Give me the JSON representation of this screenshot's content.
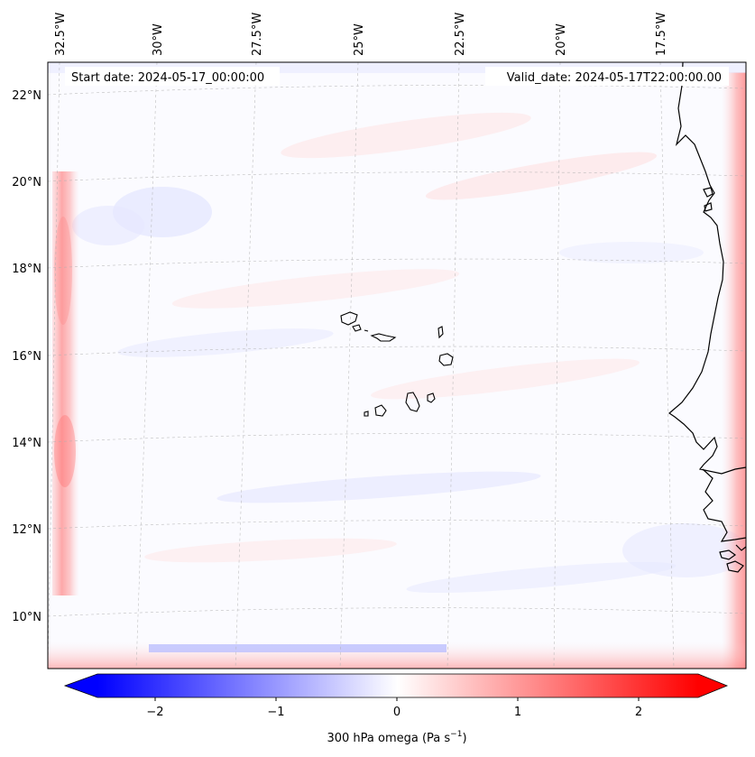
{
  "header": {
    "start_date": "Start date: 2024-05-17_00:00:00",
    "valid_date": "Valid_date: 2024-05-17T22:00:00.00"
  },
  "axes": {
    "lon_ticks": [
      "32.5°W",
      "30°W",
      "27.5°W",
      "25°W",
      "22.5°W",
      "20°W",
      "17.5°W"
    ],
    "lat_ticks": [
      "22°N",
      "20°N",
      "18°N",
      "16°N",
      "14°N",
      "12°N",
      "10°N"
    ]
  },
  "colorbar": {
    "ticks": [
      "−2",
      "−1",
      "0",
      "1",
      "2"
    ],
    "label": "300 hPa omega (Pa s",
    "label_sup": "−1",
    "label_end": ")",
    "vmin": -2.75,
    "vmax": 2.75,
    "colors": {
      "low": "#0000ff",
      "mid": "#ffffff",
      "high": "#ff0000"
    }
  },
  "map": {
    "coastline_color": "#000000",
    "gridline_color": "#b0b0b0"
  }
}
